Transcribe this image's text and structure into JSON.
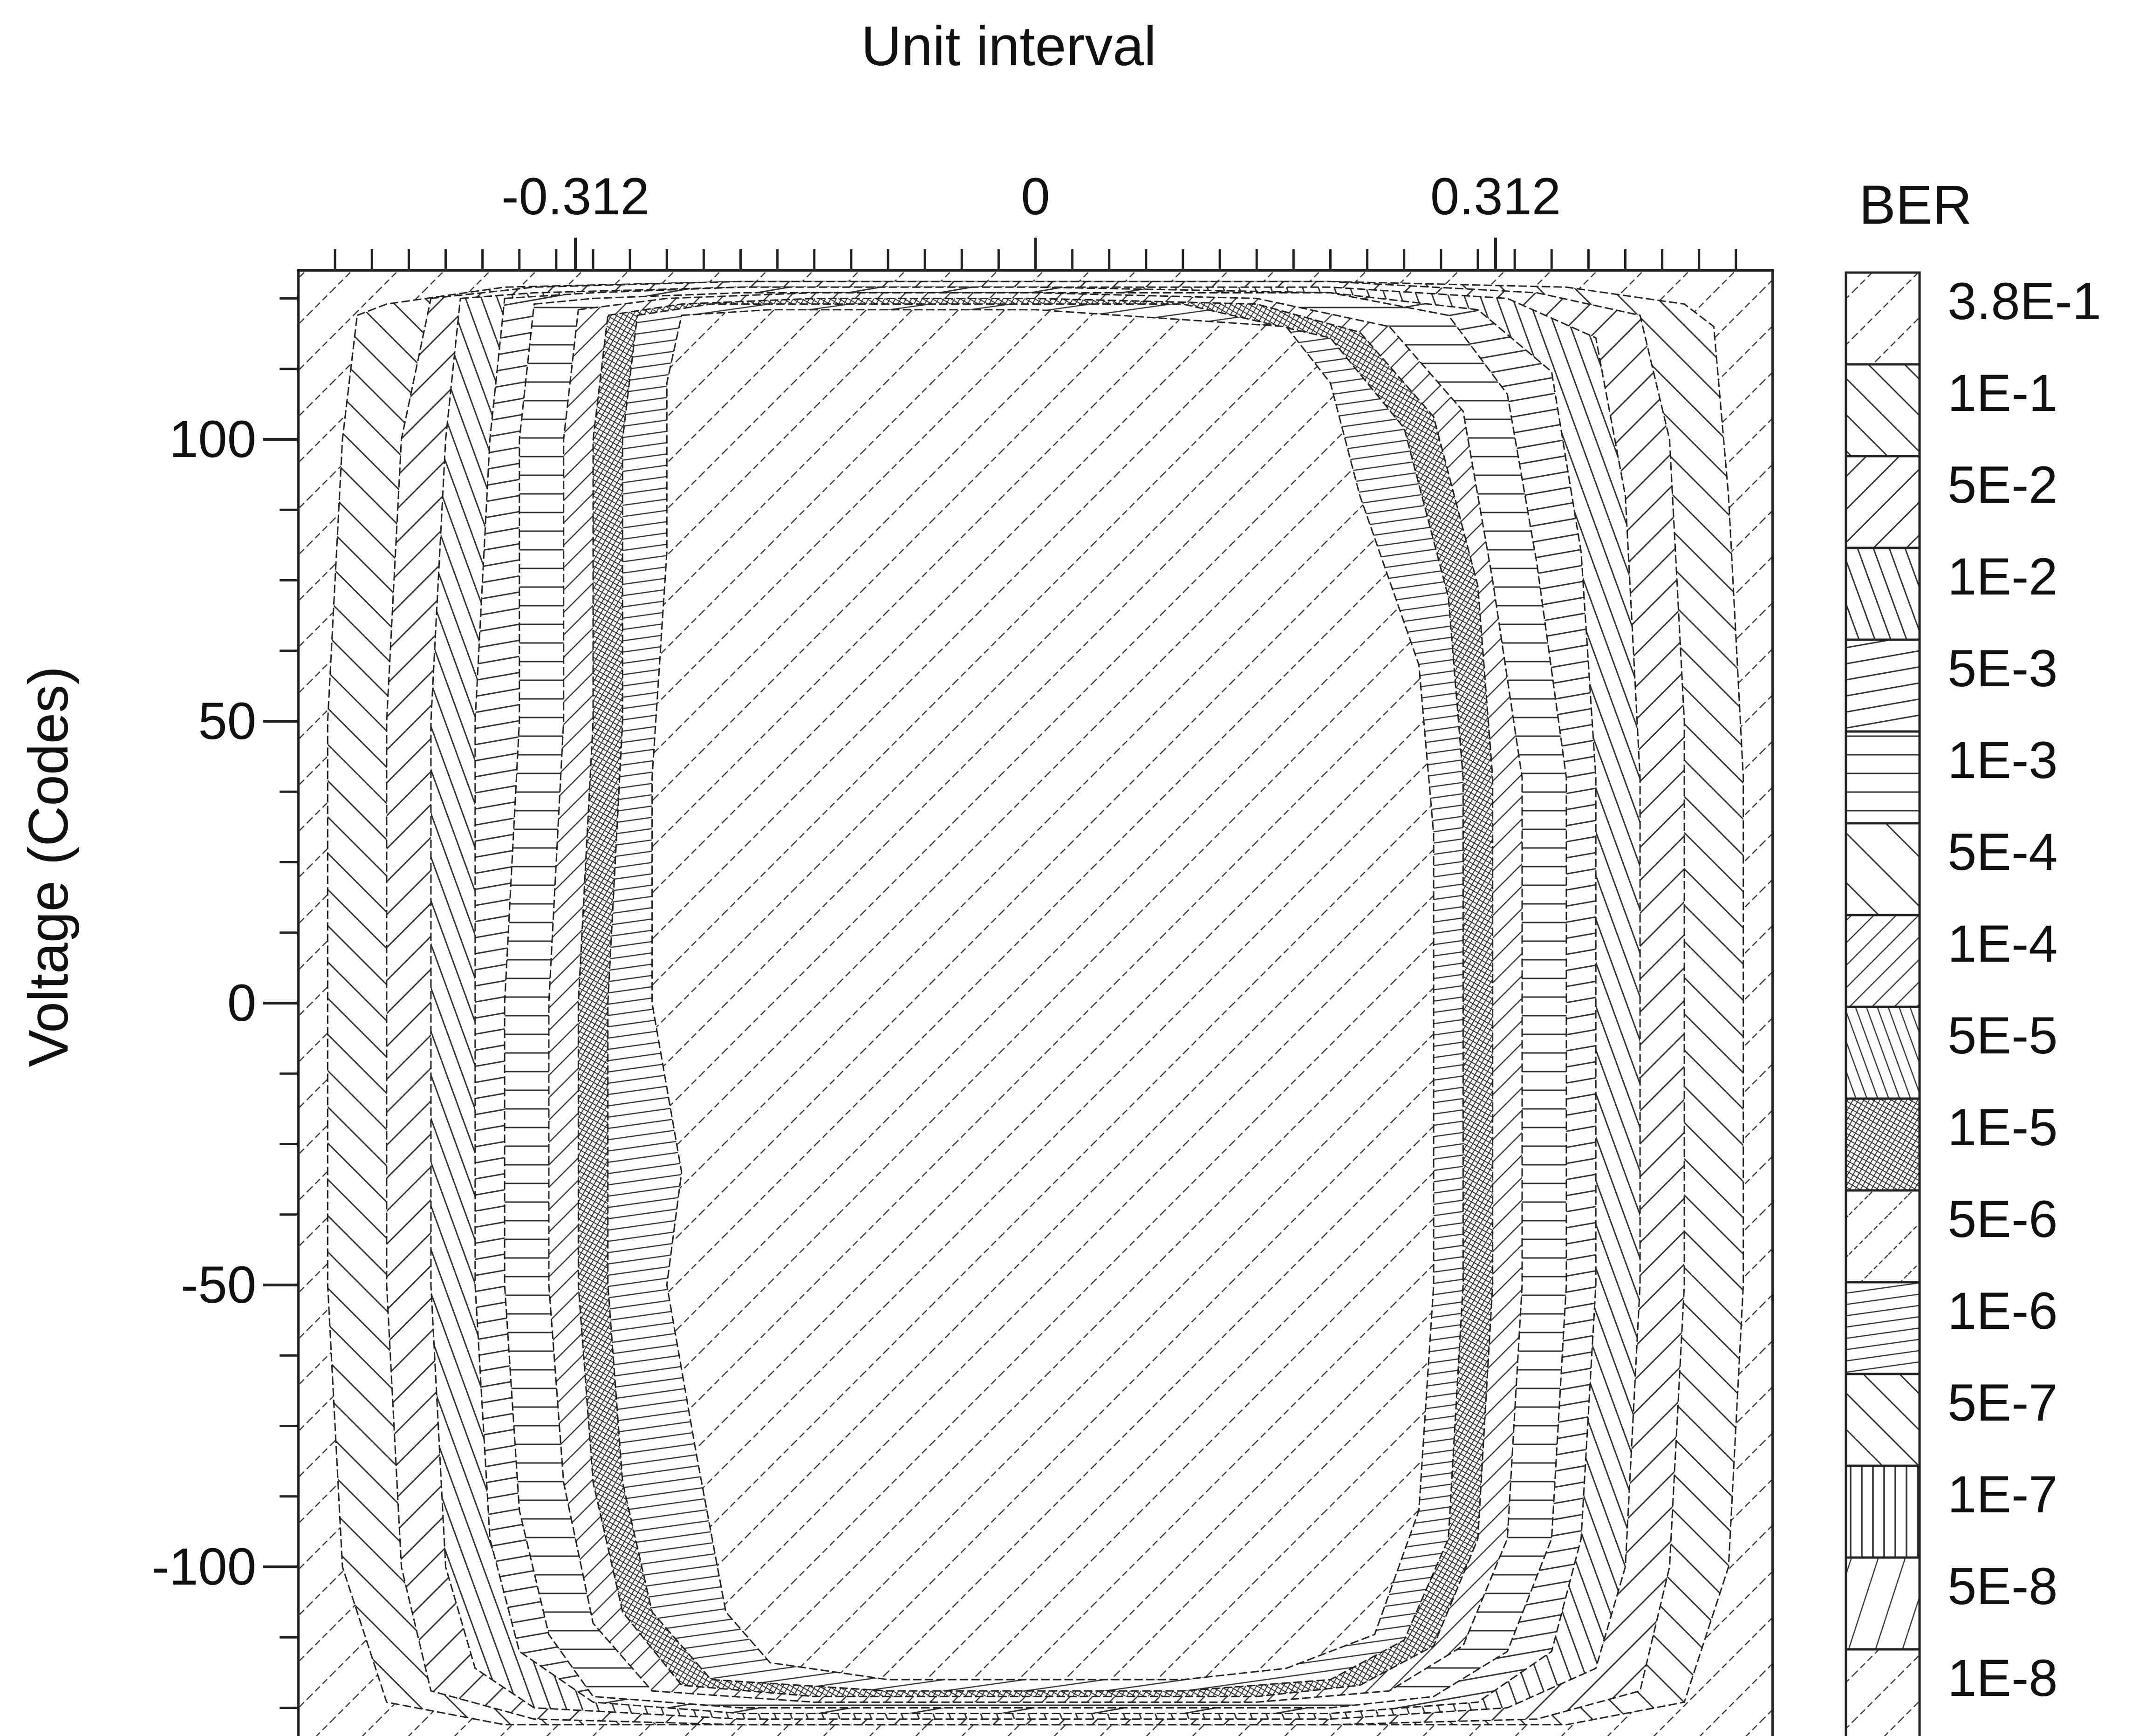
{
  "chart_data": {
    "type": "heatmap",
    "title": "",
    "top_axis_label": "Unit interval",
    "ylabel": "Voltage (Codes)",
    "x_ticks": [
      {
        "value": -0.312,
        "label": "-0.312"
      },
      {
        "value": 0,
        "label": "0"
      },
      {
        "value": 0.312,
        "label": "0.312"
      }
    ],
    "xlim": [
      -0.5,
      0.5
    ],
    "y_ticks": [
      {
        "value": 100,
        "label": "100"
      },
      {
        "value": 50,
        "label": "50"
      },
      {
        "value": 0,
        "label": "0"
      },
      {
        "value": -50,
        "label": "-50"
      },
      {
        "value": -100,
        "label": "-100"
      }
    ],
    "ylim": [
      -130,
      130
    ],
    "legend_title": "BER",
    "legend_position": "right",
    "legend": [
      {
        "label": "3.8E-1",
        "pattern": "diag-sparse"
      },
      {
        "label": "1E-1",
        "pattern": "anti-diag"
      },
      {
        "label": "5E-2",
        "pattern": "diag"
      },
      {
        "label": "1E-2",
        "pattern": "steep-anti"
      },
      {
        "label": "5E-3",
        "pattern": "shallow"
      },
      {
        "label": "1E-3",
        "pattern": "horizontal"
      },
      {
        "label": "5E-4",
        "pattern": "anti-diag-wide"
      },
      {
        "label": "1E-4",
        "pattern": "diag-dense"
      },
      {
        "label": "5E-5",
        "pattern": "steep-anti-dense"
      },
      {
        "label": "1E-5",
        "pattern": "crosshatch"
      },
      {
        "label": "5E-6",
        "pattern": "diag-medium"
      },
      {
        "label": "1E-6",
        "pattern": "shallow-dense"
      },
      {
        "label": "5E-7",
        "pattern": "anti-diag"
      },
      {
        "label": "1E-7",
        "pattern": "vertical"
      },
      {
        "label": "5E-8",
        "pattern": "steep-diag"
      },
      {
        "label": "1E-8",
        "pattern": "diag-sparse"
      }
    ],
    "contours": [
      {
        "ber": "1E-1",
        "points": [
          [
            -0.46,
            122
          ],
          [
            -0.44,
            124
          ],
          [
            -0.36,
            127
          ],
          [
            -0.2,
            128
          ],
          [
            0,
            128
          ],
          [
            0.2,
            128
          ],
          [
            0.36,
            127
          ],
          [
            0.44,
            124
          ],
          [
            0.46,
            120
          ],
          [
            0.47,
            90
          ],
          [
            0.48,
            40
          ],
          [
            0.48,
            0
          ],
          [
            0.48,
            -50
          ],
          [
            0.47,
            -100
          ],
          [
            0.44,
            -124
          ],
          [
            0.36,
            -128
          ],
          [
            0.2,
            -128
          ],
          [
            0,
            -128
          ],
          [
            -0.2,
            -128
          ],
          [
            -0.36,
            -128
          ],
          [
            -0.44,
            -124
          ],
          [
            -0.47,
            -100
          ],
          [
            -0.48,
            -50
          ],
          [
            -0.48,
            0
          ],
          [
            -0.48,
            50
          ],
          [
            -0.47,
            100
          ]
        ]
      },
      {
        "ber": "5E-2",
        "points": [
          [
            -0.41,
            125
          ],
          [
            -0.34,
            127
          ],
          [
            -0.2,
            128
          ],
          [
            0,
            128
          ],
          [
            0.2,
            128
          ],
          [
            0.34,
            126
          ],
          [
            0.41,
            122
          ],
          [
            0.43,
            100
          ],
          [
            0.44,
            50
          ],
          [
            0.44,
            0
          ],
          [
            0.44,
            -50
          ],
          [
            0.43,
            -100
          ],
          [
            0.41,
            -122
          ],
          [
            0.34,
            -127
          ],
          [
            0.2,
            -128
          ],
          [
            0,
            -128
          ],
          [
            -0.2,
            -128
          ],
          [
            -0.34,
            -127
          ],
          [
            -0.41,
            -122
          ],
          [
            -0.43,
            -100
          ],
          [
            -0.44,
            -50
          ],
          [
            -0.44,
            0
          ],
          [
            -0.44,
            50
          ],
          [
            -0.43,
            100
          ]
        ]
      },
      {
        "ber": "1E-2",
        "points": [
          [
            -0.39,
            125
          ],
          [
            -0.34,
            126
          ],
          [
            -0.2,
            127
          ],
          [
            0,
            127
          ],
          [
            0.2,
            127
          ],
          [
            0.32,
            125
          ],
          [
            0.38,
            118
          ],
          [
            0.4,
            90
          ],
          [
            0.41,
            40
          ],
          [
            0.41,
            0
          ],
          [
            0.41,
            -50
          ],
          [
            0.4,
            -100
          ],
          [
            0.38,
            -118
          ],
          [
            0.32,
            -125
          ],
          [
            0.2,
            -127
          ],
          [
            0,
            -127
          ],
          [
            -0.2,
            -127
          ],
          [
            -0.34,
            -125
          ],
          [
            -0.38,
            -118
          ],
          [
            -0.4,
            -100
          ],
          [
            -0.41,
            -50
          ],
          [
            -0.41,
            0
          ],
          [
            -0.41,
            50
          ],
          [
            -0.4,
            100
          ]
        ]
      },
      {
        "ber": "5E-3",
        "points": [
          [
            -0.36,
            125
          ],
          [
            -0.3,
            126
          ],
          [
            -0.2,
            127
          ],
          [
            0,
            127
          ],
          [
            0.2,
            126
          ],
          [
            0.3,
            123
          ],
          [
            0.35,
            112
          ],
          [
            0.37,
            80
          ],
          [
            0.38,
            40
          ],
          [
            0.38,
            0
          ],
          [
            0.38,
            -50
          ],
          [
            0.37,
            -95
          ],
          [
            0.35,
            -115
          ],
          [
            0.3,
            -124
          ],
          [
            0.2,
            -126
          ],
          [
            0,
            -126
          ],
          [
            -0.2,
            -126
          ],
          [
            -0.3,
            -124
          ],
          [
            -0.35,
            -115
          ],
          [
            -0.37,
            -95
          ],
          [
            -0.38,
            -50
          ],
          [
            -0.38,
            0
          ],
          [
            -0.38,
            50
          ],
          [
            -0.37,
            100
          ]
        ]
      },
      {
        "ber": "1E-3",
        "points": [
          [
            -0.34,
            124
          ],
          [
            -0.3,
            125
          ],
          [
            -0.2,
            126
          ],
          [
            0,
            126
          ],
          [
            0.2,
            126
          ],
          [
            0.28,
            122
          ],
          [
            0.32,
            108
          ],
          [
            0.34,
            78
          ],
          [
            0.36,
            40
          ],
          [
            0.36,
            0
          ],
          [
            0.36,
            -50
          ],
          [
            0.35,
            -95
          ],
          [
            0.32,
            -115
          ],
          [
            0.27,
            -123
          ],
          [
            0.2,
            -125
          ],
          [
            0,
            -125
          ],
          [
            -0.2,
            -125
          ],
          [
            -0.3,
            -123
          ],
          [
            -0.33,
            -112
          ],
          [
            -0.35,
            -90
          ],
          [
            -0.36,
            -50
          ],
          [
            -0.36,
            0
          ],
          [
            -0.35,
            50
          ],
          [
            -0.35,
            100
          ]
        ]
      },
      {
        "ber": "1E-4",
        "points": [
          [
            -0.31,
            123
          ],
          [
            -0.25,
            125
          ],
          [
            -0.15,
            126
          ],
          [
            0,
            126
          ],
          [
            0.15,
            125
          ],
          [
            0.24,
            120
          ],
          [
            0.29,
            105
          ],
          [
            0.31,
            75
          ],
          [
            0.33,
            40
          ],
          [
            0.33,
            0
          ],
          [
            0.33,
            -50
          ],
          [
            0.32,
            -95
          ],
          [
            0.29,
            -114
          ],
          [
            0.24,
            -122
          ],
          [
            0.15,
            -124
          ],
          [
            0,
            -124
          ],
          [
            -0.15,
            -124
          ],
          [
            -0.26,
            -122
          ],
          [
            -0.3,
            -110
          ],
          [
            -0.32,
            -85
          ],
          [
            -0.33,
            -50
          ],
          [
            -0.33,
            0
          ],
          [
            -0.32,
            50
          ],
          [
            -0.32,
            100
          ]
        ]
      },
      {
        "ber": "1E-5",
        "points": [
          [
            -0.29,
            122
          ],
          [
            -0.24,
            124
          ],
          [
            -0.15,
            125
          ],
          [
            0,
            125
          ],
          [
            0.15,
            124
          ],
          [
            0.22,
            119
          ],
          [
            0.27,
            104
          ],
          [
            0.3,
            74
          ],
          [
            0.31,
            40
          ],
          [
            0.31,
            0
          ],
          [
            0.31,
            -50
          ],
          [
            0.3,
            -95
          ],
          [
            0.27,
            -114
          ],
          [
            0.22,
            -121
          ],
          [
            0.15,
            -123
          ],
          [
            0,
            -123
          ],
          [
            -0.15,
            -123
          ],
          [
            -0.24,
            -121
          ],
          [
            -0.28,
            -108
          ],
          [
            -0.3,
            -85
          ],
          [
            -0.31,
            -50
          ],
          [
            -0.31,
            0
          ],
          [
            -0.3,
            50
          ],
          [
            -0.3,
            100
          ]
        ]
      },
      {
        "ber": "1E-6",
        "points": [
          [
            -0.27,
            122
          ],
          [
            -0.22,
            124
          ],
          [
            -0.1,
            124
          ],
          [
            0,
            124
          ],
          [
            0.1,
            124
          ],
          [
            0.2,
            118
          ],
          [
            0.25,
            102
          ],
          [
            0.28,
            72
          ],
          [
            0.29,
            40
          ],
          [
            0.29,
            0
          ],
          [
            0.29,
            -50
          ],
          [
            0.28,
            -95
          ],
          [
            0.25,
            -113
          ],
          [
            0.2,
            -120
          ],
          [
            0.1,
            -122
          ],
          [
            0,
            -122
          ],
          [
            -0.1,
            -122
          ],
          [
            -0.22,
            -120
          ],
          [
            -0.26,
            -108
          ],
          [
            -0.28,
            -85
          ],
          [
            -0.29,
            -50
          ],
          [
            -0.29,
            0
          ],
          [
            -0.28,
            50
          ],
          [
            -0.28,
            100
          ]
        ]
      },
      {
        "ber": "1E-8",
        "points": [
          [
            -0.24,
            122
          ],
          [
            -0.18,
            123
          ],
          [
            0,
            123
          ],
          [
            0.17,
            120
          ],
          [
            0.2,
            110
          ],
          [
            0.22,
            90
          ],
          [
            0.26,
            60
          ],
          [
            0.27,
            30
          ],
          [
            0.27,
            0
          ],
          [
            0.27,
            -50
          ],
          [
            0.26,
            -90
          ],
          [
            0.23,
            -112
          ],
          [
            0.17,
            -118
          ],
          [
            0.1,
            -120
          ],
          [
            0,
            -120
          ],
          [
            -0.1,
            -120
          ],
          [
            -0.18,
            -117
          ],
          [
            -0.21,
            -108
          ],
          [
            -0.23,
            -80
          ],
          [
            -0.25,
            -50
          ],
          [
            -0.24,
            -30
          ],
          [
            -0.26,
            0
          ],
          [
            -0.26,
            40
          ],
          [
            -0.25,
            80
          ],
          [
            -0.25,
            110
          ]
        ]
      }
    ]
  }
}
